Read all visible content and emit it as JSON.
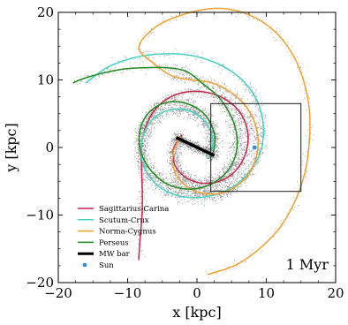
{
  "chart_data": {
    "type": "scatter",
    "xlabel": "x [kpc]",
    "ylabel": "y [kpc]",
    "xlim": [
      -20,
      20
    ],
    "ylim": [
      -20,
      20
    ],
    "xticks": [
      -20,
      -10,
      0,
      10,
      20
    ],
    "yticks": [
      -20,
      -10,
      0,
      10,
      20
    ],
    "xtick_labels": [
      "−20",
      "−10",
      "0",
      "10",
      "20"
    ],
    "ytick_labels": [
      "−20",
      "−10",
      "0",
      "10",
      "20"
    ],
    "grid": false,
    "legend_position": "lower-left",
    "annotation": "1 Myr",
    "colors": {
      "stars": "#808080",
      "sagittarius": "#c8244c",
      "scutum": "#48d2c4",
      "norma": "#f0a030",
      "perseus": "#1e8a1e",
      "bar": "#000000",
      "sun": "#2a8ce8"
    },
    "series": [
      {
        "name": "Sagittarius-Carina",
        "kind": "spiral-arm",
        "color": "#c8244c",
        "points": [
          [
            -2.2,
            1.8
          ],
          [
            -3.4,
            -0.2
          ],
          [
            -3.2,
            -2.6
          ],
          [
            -1.8,
            -4.3
          ],
          [
            0.2,
            -5.2
          ],
          [
            2.5,
            -5.2
          ],
          [
            4.6,
            -4.3
          ],
          [
            6.2,
            -2.6
          ],
          [
            7.2,
            -0.2
          ],
          [
            7.3,
            2.4
          ],
          [
            6.4,
            4.9
          ],
          [
            4.6,
            6.8
          ],
          [
            2.1,
            8.0
          ],
          [
            -0.8,
            8.3
          ],
          [
            -3.6,
            7.6
          ],
          [
            -5.9,
            5.8
          ],
          [
            -7.3,
            3.3
          ],
          [
            -8.0,
            0.4
          ],
          [
            -8.0,
            -2.6
          ],
          [
            -7.9,
            -5.8
          ],
          [
            -7.9,
            -9.5
          ],
          [
            -8.2,
            -13.5
          ],
          [
            -8.4,
            -16.6
          ]
        ]
      },
      {
        "name": "Scutum-Crux",
        "kind": "spiral-arm",
        "color": "#48d2c4",
        "points": [
          [
            1.6,
            -1.6
          ],
          [
            2.3,
            0.5
          ],
          [
            1.9,
            2.6
          ],
          [
            0.6,
            4.4
          ],
          [
            -1.4,
            5.5
          ],
          [
            -3.7,
            5.6
          ],
          [
            -5.8,
            4.7
          ],
          [
            -7.3,
            2.9
          ],
          [
            -8.0,
            0.6
          ],
          [
            -7.9,
            -2.0
          ],
          [
            -6.8,
            -4.4
          ],
          [
            -4.9,
            -6.2
          ],
          [
            -2.4,
            -7.2
          ],
          [
            0.4,
            -7.4
          ],
          [
            3.2,
            -6.8
          ],
          [
            5.8,
            -5.4
          ],
          [
            7.8,
            -3.3
          ],
          [
            9.1,
            -0.8
          ],
          [
            9.6,
            2.1
          ],
          [
            9.3,
            5.0
          ],
          [
            8.2,
            7.8
          ],
          [
            6.3,
            10.2
          ],
          [
            3.8,
            12.0
          ],
          [
            0.9,
            13.2
          ],
          [
            -2.2,
            13.8
          ],
          [
            -5.8,
            13.8
          ],
          [
            -9.4,
            13.2
          ],
          [
            -13.0,
            11.8
          ],
          [
            -16.0,
            9.6
          ]
        ]
      },
      {
        "name": "Norma-Cygnus",
        "kind": "spiral-arm",
        "color": "#f0a030",
        "points": [
          [
            -2.4,
            1.6
          ],
          [
            -3.4,
            -0.6
          ],
          [
            -3.4,
            -2.9
          ],
          [
            -2.4,
            -4.9
          ],
          [
            -0.6,
            -6.3
          ],
          [
            1.6,
            -6.9
          ],
          [
            4.0,
            -6.6
          ],
          [
            6.1,
            -5.4
          ],
          [
            7.7,
            -3.6
          ],
          [
            8.6,
            -1.2
          ],
          [
            8.8,
            1.4
          ],
          [
            8.2,
            4.0
          ],
          [
            6.8,
            6.4
          ],
          [
            4.7,
            8.3
          ],
          [
            2.1,
            9.6
          ],
          [
            -0.8,
            10.0
          ],
          [
            -3.6,
            10.6
          ],
          [
            -6.2,
            12.4
          ],
          [
            -8.4,
            14.8
          ],
          [
            -6.0,
            17.8
          ],
          [
            -1.6,
            19.8
          ],
          [
            3.2,
            20.6
          ],
          [
            7.6,
            19.6
          ],
          [
            11.2,
            17.2
          ],
          [
            13.8,
            13.8
          ],
          [
            15.4,
            9.8
          ],
          [
            16.2,
            5.6
          ],
          [
            16.2,
            1.0
          ],
          [
            15.6,
            -3.6
          ],
          [
            14.2,
            -7.8
          ],
          [
            12.0,
            -11.8
          ],
          [
            9.0,
            -15.0
          ],
          [
            5.6,
            -17.4
          ],
          [
            1.6,
            -18.8
          ]
        ]
      },
      {
        "name": "Perseus",
        "kind": "spiral-arm",
        "color": "#1e8a1e",
        "points": [
          [
            2.2,
            -1.3
          ],
          [
            2.6,
            1.0
          ],
          [
            2.1,
            3.3
          ],
          [
            0.8,
            5.2
          ],
          [
            -1.2,
            6.4
          ],
          [
            -3.4,
            6.8
          ],
          [
            -5.6,
            6.2
          ],
          [
            -7.3,
            4.7
          ],
          [
            -8.2,
            2.6
          ],
          [
            -8.3,
            0.3
          ],
          [
            -7.6,
            -1.9
          ],
          [
            -6.2,
            -3.9
          ],
          [
            -4.3,
            -5.4
          ],
          [
            -2.0,
            -6.1
          ],
          [
            0.4,
            -6.0
          ],
          [
            2.6,
            -5.1
          ],
          [
            4.4,
            -3.5
          ],
          [
            5.5,
            -1.4
          ],
          [
            5.8,
            1.0
          ],
          [
            5.4,
            3.4
          ],
          [
            4.4,
            5.6
          ],
          [
            3.0,
            7.6
          ],
          [
            1.0,
            9.3
          ],
          [
            -1.4,
            11.2
          ],
          [
            -4.2,
            11.8
          ],
          [
            -7.4,
            11.8
          ],
          [
            -10.6,
            11.6
          ],
          [
            -13.6,
            11.0
          ],
          [
            -16.4,
            10.2
          ],
          [
            -17.8,
            9.6
          ]
        ]
      }
    ],
    "bar": {
      "name": "MW bar",
      "from": [
        -3.0,
        1.5
      ],
      "to": [
        2.5,
        -1.2
      ]
    },
    "sun": {
      "name": "Sun",
      "x": 8.3,
      "y": 0.0
    },
    "inset_box": {
      "x": [
        2.0,
        15.0
      ],
      "y": [
        -6.5,
        6.5
      ]
    },
    "legend": [
      {
        "label": "Sagittarius-Carina",
        "kind": "line",
        "color": "#c8244c"
      },
      {
        "label": "Scutum-Crux",
        "kind": "line",
        "color": "#48d2c4"
      },
      {
        "label": "Norma-Cygnus",
        "kind": "line",
        "color": "#f0a030"
      },
      {
        "label": "Perseus",
        "kind": "line",
        "color": "#1e8a1e"
      },
      {
        "label": "MW bar",
        "kind": "thick-line",
        "color": "#000000"
      },
      {
        "label": "Sun",
        "kind": "dot",
        "color": "#2a8ce8"
      }
    ]
  }
}
